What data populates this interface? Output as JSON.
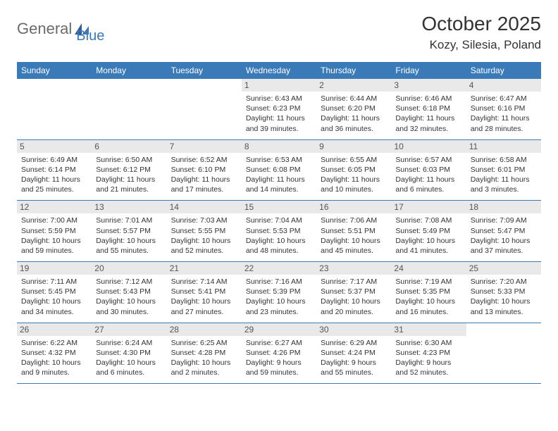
{
  "logo": {
    "part1": "General",
    "part2": "Blue"
  },
  "title": "October 2025",
  "location": "Kozy, Silesia, Poland",
  "colors": {
    "header_bg": "#3a7ab8",
    "header_text": "#ffffff",
    "daynum_bg": "#e9e9e9",
    "text": "#333333",
    "rule": "#3a7ab8",
    "logo_gray": "#6b6b6b",
    "logo_blue": "#3a7ab8"
  },
  "day_names": [
    "Sunday",
    "Monday",
    "Tuesday",
    "Wednesday",
    "Thursday",
    "Friday",
    "Saturday"
  ],
  "weeks": [
    [
      {
        "n": "",
        "sr": "",
        "ss": "",
        "dl": ""
      },
      {
        "n": "",
        "sr": "",
        "ss": "",
        "dl": ""
      },
      {
        "n": "",
        "sr": "",
        "ss": "",
        "dl": ""
      },
      {
        "n": "1",
        "sr": "Sunrise: 6:43 AM",
        "ss": "Sunset: 6:23 PM",
        "dl": "Daylight: 11 hours and 39 minutes."
      },
      {
        "n": "2",
        "sr": "Sunrise: 6:44 AM",
        "ss": "Sunset: 6:20 PM",
        "dl": "Daylight: 11 hours and 36 minutes."
      },
      {
        "n": "3",
        "sr": "Sunrise: 6:46 AM",
        "ss": "Sunset: 6:18 PM",
        "dl": "Daylight: 11 hours and 32 minutes."
      },
      {
        "n": "4",
        "sr": "Sunrise: 6:47 AM",
        "ss": "Sunset: 6:16 PM",
        "dl": "Daylight: 11 hours and 28 minutes."
      }
    ],
    [
      {
        "n": "5",
        "sr": "Sunrise: 6:49 AM",
        "ss": "Sunset: 6:14 PM",
        "dl": "Daylight: 11 hours and 25 minutes."
      },
      {
        "n": "6",
        "sr": "Sunrise: 6:50 AM",
        "ss": "Sunset: 6:12 PM",
        "dl": "Daylight: 11 hours and 21 minutes."
      },
      {
        "n": "7",
        "sr": "Sunrise: 6:52 AM",
        "ss": "Sunset: 6:10 PM",
        "dl": "Daylight: 11 hours and 17 minutes."
      },
      {
        "n": "8",
        "sr": "Sunrise: 6:53 AM",
        "ss": "Sunset: 6:08 PM",
        "dl": "Daylight: 11 hours and 14 minutes."
      },
      {
        "n": "9",
        "sr": "Sunrise: 6:55 AM",
        "ss": "Sunset: 6:05 PM",
        "dl": "Daylight: 11 hours and 10 minutes."
      },
      {
        "n": "10",
        "sr": "Sunrise: 6:57 AM",
        "ss": "Sunset: 6:03 PM",
        "dl": "Daylight: 11 hours and 6 minutes."
      },
      {
        "n": "11",
        "sr": "Sunrise: 6:58 AM",
        "ss": "Sunset: 6:01 PM",
        "dl": "Daylight: 11 hours and 3 minutes."
      }
    ],
    [
      {
        "n": "12",
        "sr": "Sunrise: 7:00 AM",
        "ss": "Sunset: 5:59 PM",
        "dl": "Daylight: 10 hours and 59 minutes."
      },
      {
        "n": "13",
        "sr": "Sunrise: 7:01 AM",
        "ss": "Sunset: 5:57 PM",
        "dl": "Daylight: 10 hours and 55 minutes."
      },
      {
        "n": "14",
        "sr": "Sunrise: 7:03 AM",
        "ss": "Sunset: 5:55 PM",
        "dl": "Daylight: 10 hours and 52 minutes."
      },
      {
        "n": "15",
        "sr": "Sunrise: 7:04 AM",
        "ss": "Sunset: 5:53 PM",
        "dl": "Daylight: 10 hours and 48 minutes."
      },
      {
        "n": "16",
        "sr": "Sunrise: 7:06 AM",
        "ss": "Sunset: 5:51 PM",
        "dl": "Daylight: 10 hours and 45 minutes."
      },
      {
        "n": "17",
        "sr": "Sunrise: 7:08 AM",
        "ss": "Sunset: 5:49 PM",
        "dl": "Daylight: 10 hours and 41 minutes."
      },
      {
        "n": "18",
        "sr": "Sunrise: 7:09 AM",
        "ss": "Sunset: 5:47 PM",
        "dl": "Daylight: 10 hours and 37 minutes."
      }
    ],
    [
      {
        "n": "19",
        "sr": "Sunrise: 7:11 AM",
        "ss": "Sunset: 5:45 PM",
        "dl": "Daylight: 10 hours and 34 minutes."
      },
      {
        "n": "20",
        "sr": "Sunrise: 7:12 AM",
        "ss": "Sunset: 5:43 PM",
        "dl": "Daylight: 10 hours and 30 minutes."
      },
      {
        "n": "21",
        "sr": "Sunrise: 7:14 AM",
        "ss": "Sunset: 5:41 PM",
        "dl": "Daylight: 10 hours and 27 minutes."
      },
      {
        "n": "22",
        "sr": "Sunrise: 7:16 AM",
        "ss": "Sunset: 5:39 PM",
        "dl": "Daylight: 10 hours and 23 minutes."
      },
      {
        "n": "23",
        "sr": "Sunrise: 7:17 AM",
        "ss": "Sunset: 5:37 PM",
        "dl": "Daylight: 10 hours and 20 minutes."
      },
      {
        "n": "24",
        "sr": "Sunrise: 7:19 AM",
        "ss": "Sunset: 5:35 PM",
        "dl": "Daylight: 10 hours and 16 minutes."
      },
      {
        "n": "25",
        "sr": "Sunrise: 7:20 AM",
        "ss": "Sunset: 5:33 PM",
        "dl": "Daylight: 10 hours and 13 minutes."
      }
    ],
    [
      {
        "n": "26",
        "sr": "Sunrise: 6:22 AM",
        "ss": "Sunset: 4:32 PM",
        "dl": "Daylight: 10 hours and 9 minutes."
      },
      {
        "n": "27",
        "sr": "Sunrise: 6:24 AM",
        "ss": "Sunset: 4:30 PM",
        "dl": "Daylight: 10 hours and 6 minutes."
      },
      {
        "n": "28",
        "sr": "Sunrise: 6:25 AM",
        "ss": "Sunset: 4:28 PM",
        "dl": "Daylight: 10 hours and 2 minutes."
      },
      {
        "n": "29",
        "sr": "Sunrise: 6:27 AM",
        "ss": "Sunset: 4:26 PM",
        "dl": "Daylight: 9 hours and 59 minutes."
      },
      {
        "n": "30",
        "sr": "Sunrise: 6:29 AM",
        "ss": "Sunset: 4:24 PM",
        "dl": "Daylight: 9 hours and 55 minutes."
      },
      {
        "n": "31",
        "sr": "Sunrise: 6:30 AM",
        "ss": "Sunset: 4:23 PM",
        "dl": "Daylight: 9 hours and 52 minutes."
      },
      {
        "n": "",
        "sr": "",
        "ss": "",
        "dl": ""
      }
    ]
  ]
}
